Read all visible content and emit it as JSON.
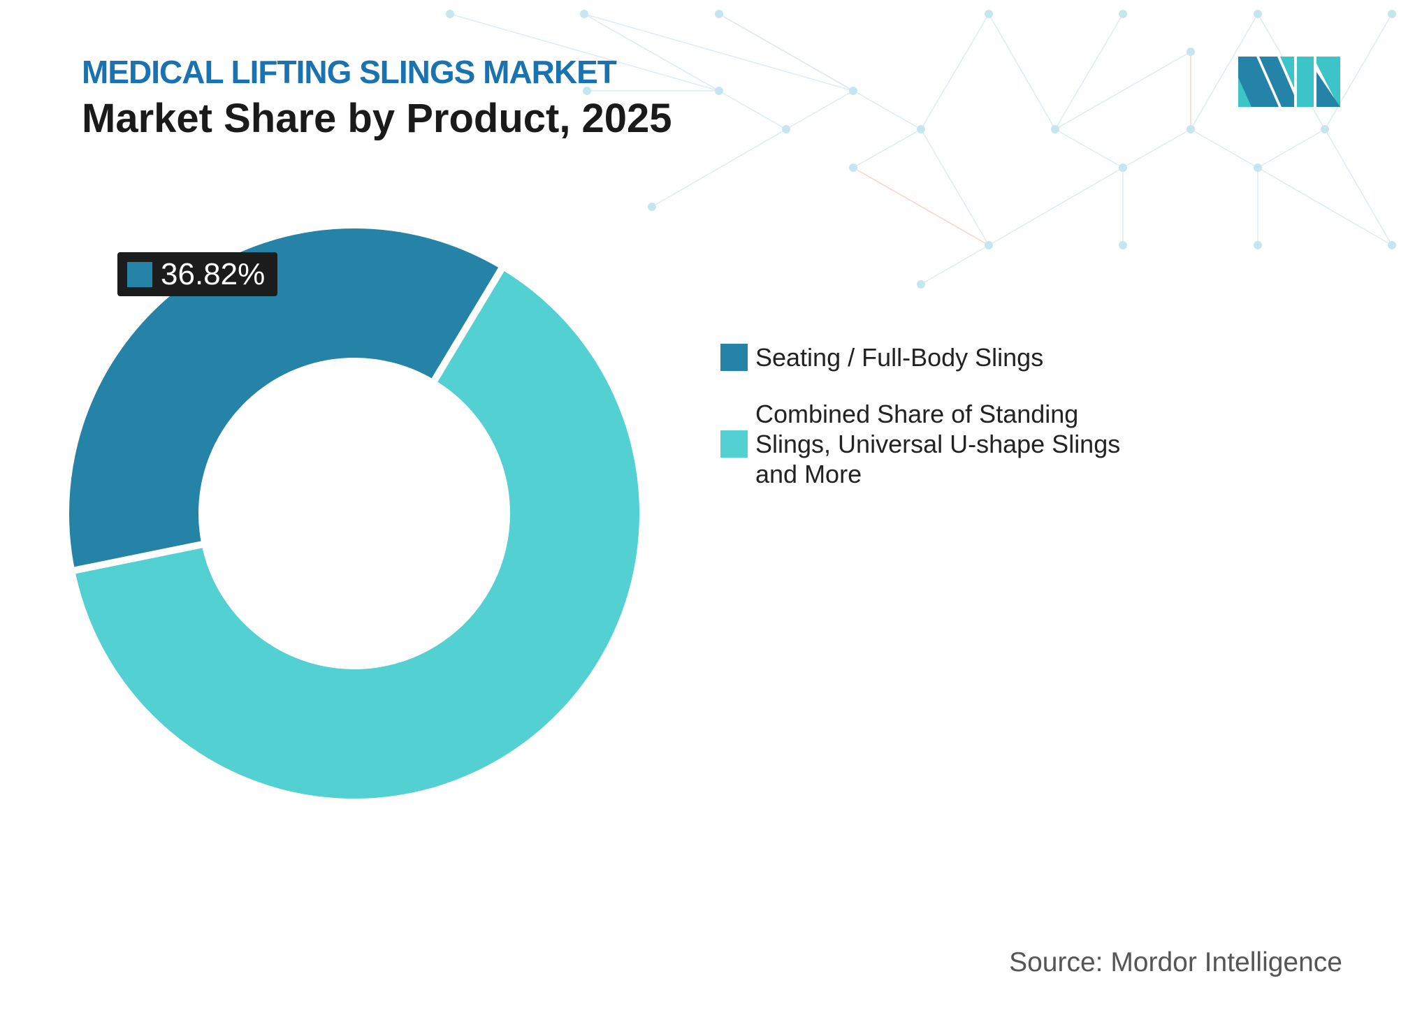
{
  "header": {
    "subtitle": "MEDICAL LIFTING SLINGS MARKET",
    "title": "Market Share by Product, 2025"
  },
  "logo": {
    "name": "mordor-intelligence-logo",
    "colors": [
      "#2683a8",
      "#3cc4c8"
    ]
  },
  "source": "Source: Mordor Intelligence",
  "chart_data": {
    "type": "pie",
    "donut": true,
    "title": "Market Share by Product, 2025",
    "categories": [
      "Seating / Full-Body Slings",
      "Combined Share of Standing Slings, Universal U-shape Slings and More"
    ],
    "values": [
      36.82,
      63.18
    ],
    "colors": [
      "#2683a8",
      "#52d0d2"
    ],
    "data_labels": [
      {
        "category": "Seating / Full-Body Slings",
        "text": "36.82%"
      }
    ],
    "legend_position": "right",
    "legend": [
      {
        "label": "Seating / Full-Body Slings",
        "color": "#2683a8"
      },
      {
        "label": "Combined Share of Standing Slings, Universal U-shape Slings and More",
        "color": "#52d0d2"
      }
    ]
  }
}
